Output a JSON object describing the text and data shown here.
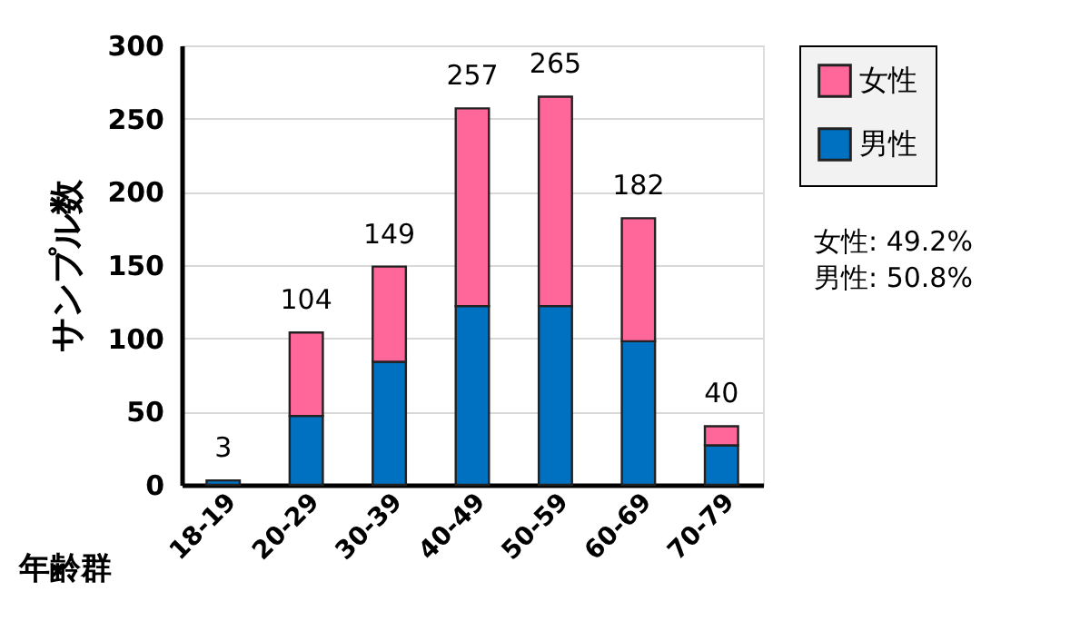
{
  "chart_data": {
    "type": "bar",
    "stacked": true,
    "ylabel": "サンプル数",
    "xlabel": "年齢群",
    "categories": [
      "18-19",
      "20-29",
      "30-39",
      "40-49",
      "50-59",
      "60-69",
      "70-79"
    ],
    "series": [
      {
        "name": "男性",
        "color": "#0070c0",
        "values": [
          3,
          47,
          84,
          122,
          122,
          98,
          27
        ]
      },
      {
        "name": "女性",
        "color": "#ff6699",
        "values": [
          null,
          57,
          65,
          135,
          143,
          84,
          13
        ]
      }
    ],
    "totals": [
      "3",
      "104",
      "149",
      "257",
      "265",
      "182",
      "40"
    ],
    "ylim": [
      0,
      300
    ],
    "yticks": [
      0,
      50,
      100,
      150,
      200,
      250,
      300
    ],
    "grid": "y",
    "legend": "top right",
    "annotations": [
      "女性: 49.2%",
      "男性: 50.8%"
    ]
  }
}
